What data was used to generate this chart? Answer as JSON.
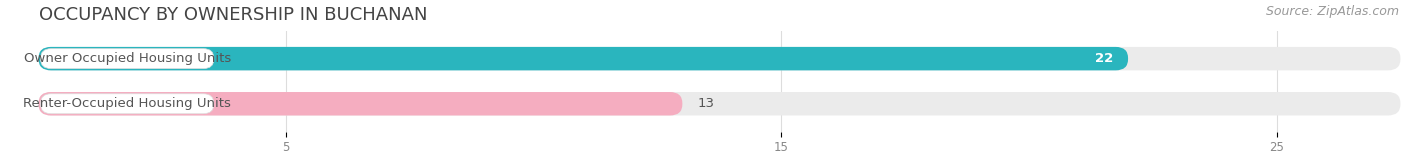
{
  "title": "OCCUPANCY BY OWNERSHIP IN BUCHANAN",
  "source": "Source: ZipAtlas.com",
  "categories": [
    "Owner Occupied Housing Units",
    "Renter-Occupied Housing Units"
  ],
  "values": [
    22,
    13
  ],
  "bar_colors": [
    "#2ab5be",
    "#f5adc0"
  ],
  "xlim_max": 27.5,
  "xticks": [
    5,
    15,
    25
  ],
  "bar_height": 0.52,
  "background_color": "#ffffff",
  "title_fontsize": 13,
  "source_fontsize": 9,
  "label_fontsize": 9.5,
  "value_fontsize": 9.5,
  "track_color": "#ebebeb",
  "label_box_color": "#ffffff",
  "value_color_inside": "#ffffff",
  "value_color_outside": "#555555",
  "label_text_color": "#555555",
  "title_color": "#444444",
  "source_color": "#999999",
  "tick_color": "#888888",
  "grid_color": "#dddddd"
}
